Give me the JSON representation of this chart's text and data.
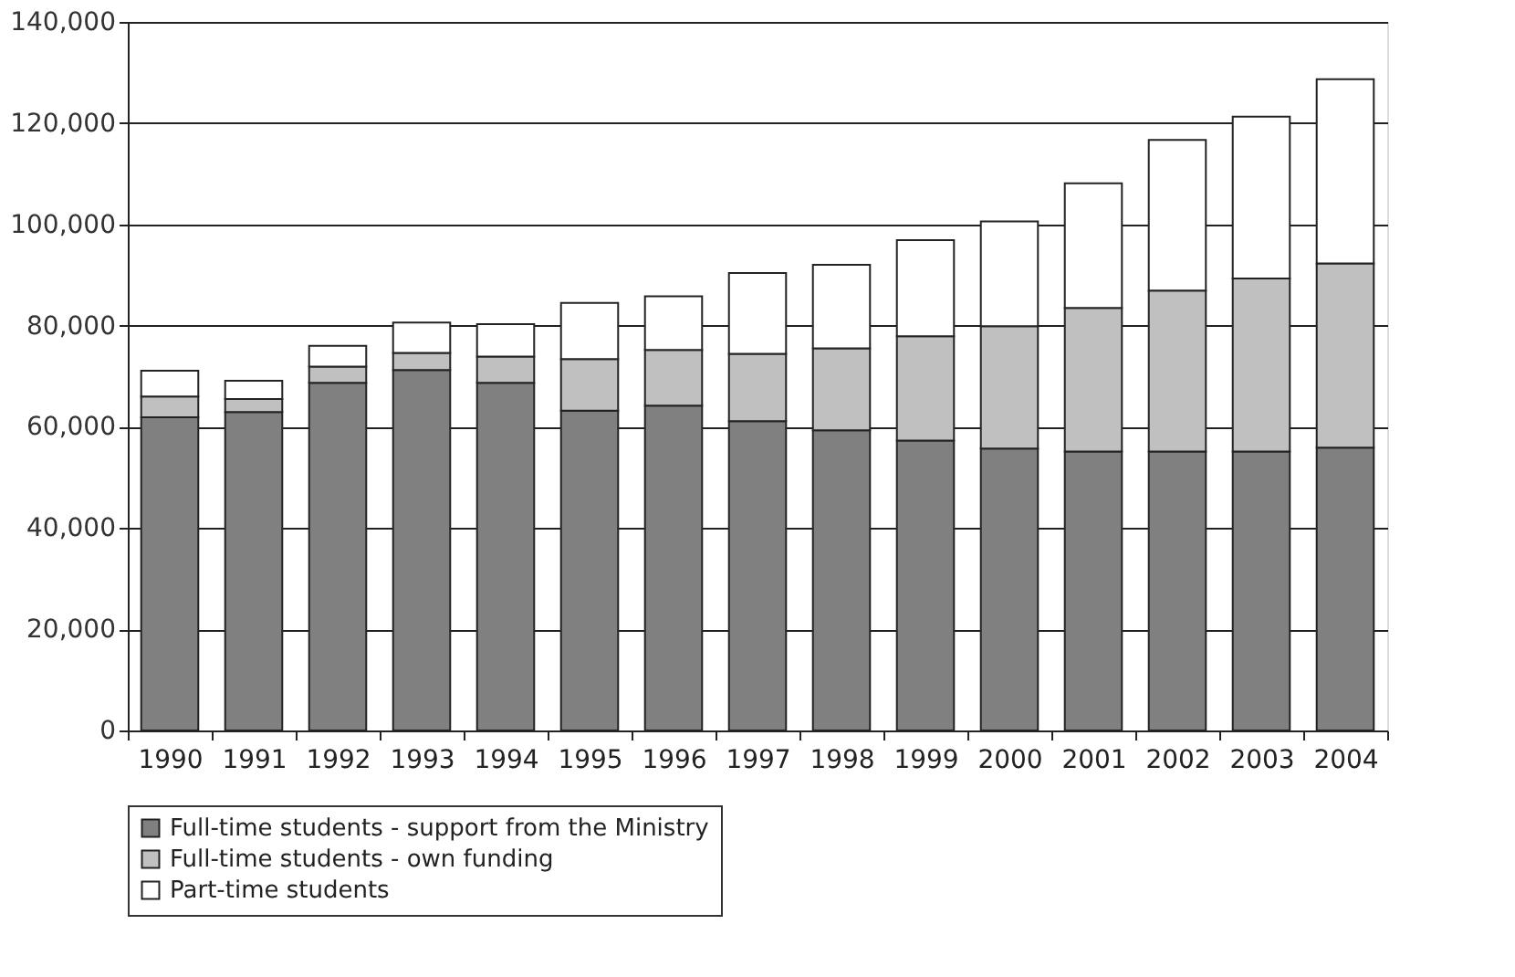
{
  "chart_data": {
    "type": "bar",
    "stacked": true,
    "categories": [
      "1990",
      "1991",
      "1992",
      "1993",
      "1994",
      "1995",
      "1996",
      "1997",
      "1998",
      "1999",
      "2000",
      "2001",
      "2002",
      "2003",
      "2004"
    ],
    "series": [
      {
        "name": "Full-time students - support from the Ministry",
        "color": "#808080",
        "values": [
          61900,
          62900,
          68700,
          71200,
          68700,
          63200,
          64200,
          61100,
          59300,
          57300,
          55700,
          55100,
          55100,
          55100,
          55900
        ]
      },
      {
        "name": "Full-time students - own funding",
        "color": "#c0c0c0",
        "values": [
          4100,
          2600,
          3200,
          3400,
          5200,
          10200,
          11000,
          13300,
          16200,
          20600,
          24200,
          28400,
          31800,
          34200,
          36400
        ]
      },
      {
        "name": "Part-time students",
        "color": "#ffffff",
        "values": [
          5100,
          3600,
          4100,
          6000,
          6400,
          11100,
          10600,
          16000,
          16500,
          19000,
          20700,
          24600,
          29800,
          32000,
          36400
        ]
      }
    ],
    "ylim": [
      0,
      140000
    ],
    "yticks": [
      {
        "value": 0,
        "label": "0"
      },
      {
        "value": 20000,
        "label": "20,000"
      },
      {
        "value": 40000,
        "label": "40,000"
      },
      {
        "value": 60000,
        "label": "60,000"
      },
      {
        "value": 80000,
        "label": "80,000"
      },
      {
        "value": 100000,
        "label": "100,000"
      },
      {
        "value": 120000,
        "label": "120,000"
      },
      {
        "value": 140000,
        "label": "140,000"
      }
    ],
    "grid": "y",
    "legend": "bottom"
  }
}
